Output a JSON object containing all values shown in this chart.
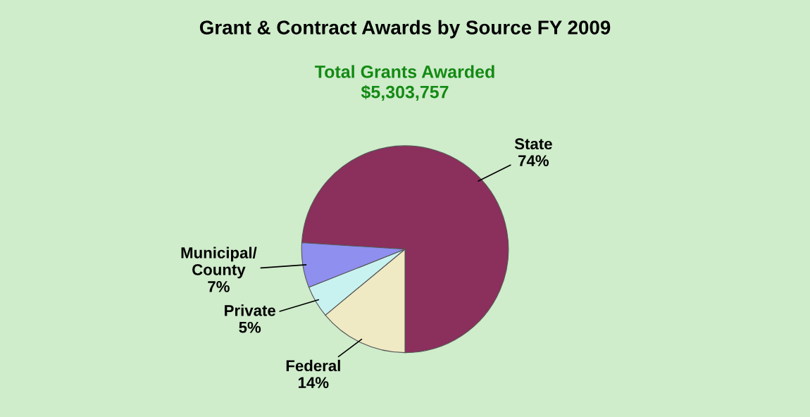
{
  "chart_data": {
    "type": "pie",
    "title": "Grant & Contract Awards by Source FY 2009",
    "subtitle": "Total Grants Awarded\n$5,303,757",
    "categories": [
      "State",
      "Federal",
      "Private",
      "Municipal/\nCounty"
    ],
    "values": [
      74,
      14,
      5,
      7
    ],
    "value_labels": [
      "74%",
      "14%",
      "5%",
      "7%"
    ],
    "colors": [
      "#8b2f5c",
      "#efeac4",
      "#c8f2f0",
      "#8f8fef"
    ],
    "legend": false
  }
}
